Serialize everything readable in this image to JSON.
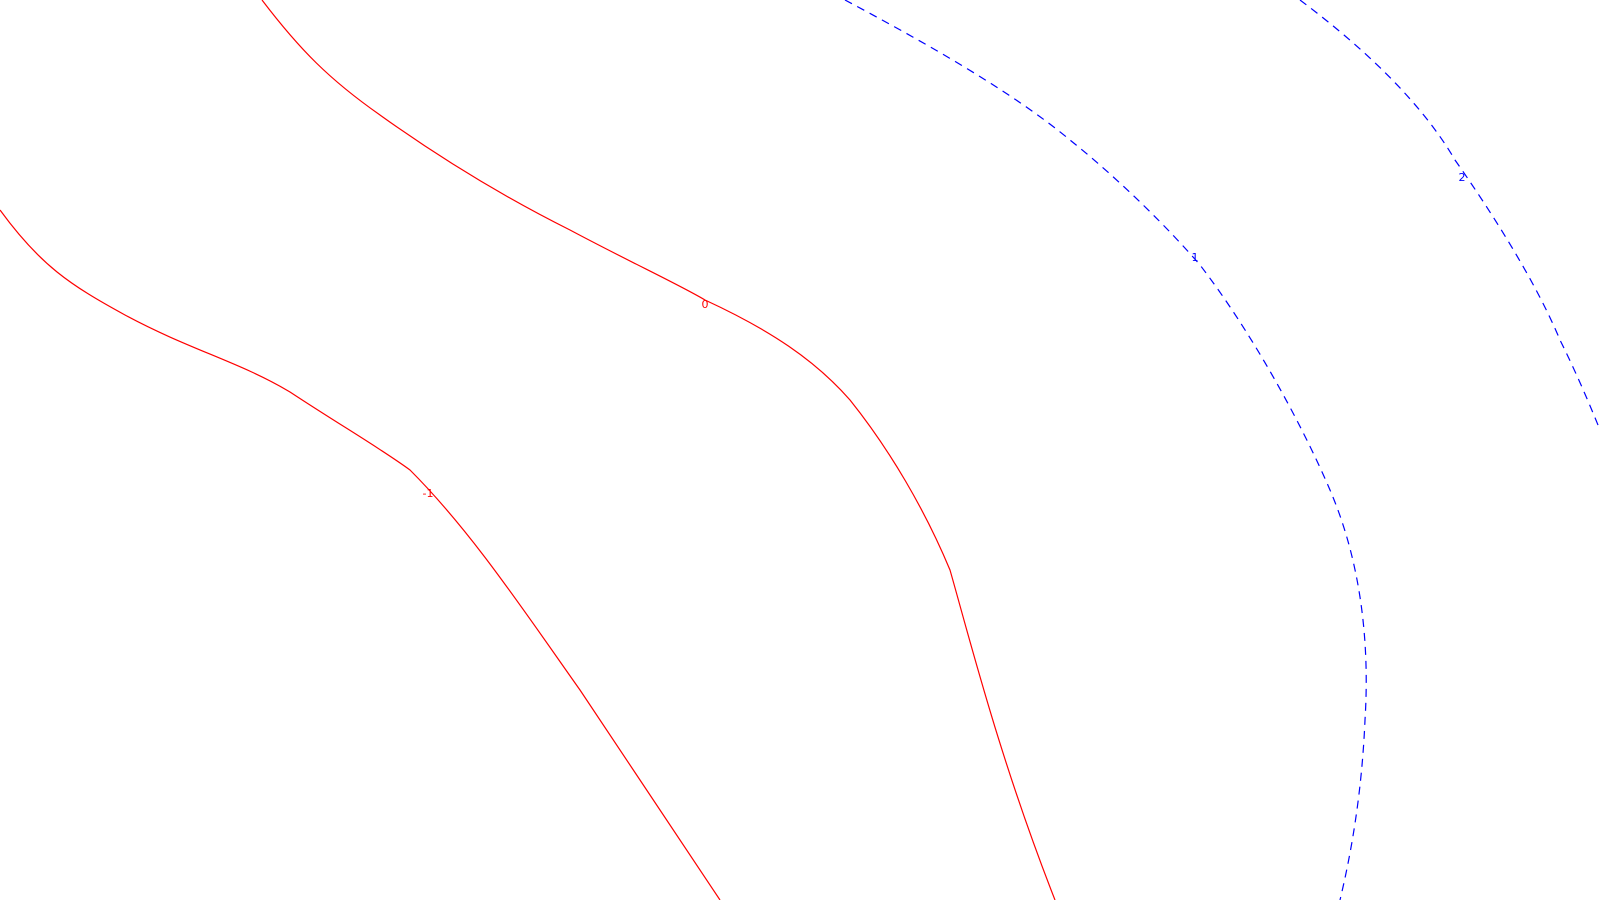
{
  "chart_data": {
    "type": "contour",
    "title": "",
    "xlabel": "",
    "ylabel": "",
    "grid": false,
    "levels": [
      {
        "level": "-1",
        "label": "-1",
        "color": "#ff0000",
        "style": "solid"
      },
      {
        "level": "0",
        "label": "0",
        "color": "#ff0000",
        "style": "solid"
      },
      {
        "level": "1",
        "label": "1",
        "color": "#0000ff",
        "style": "dashed"
      },
      {
        "level": "2",
        "label": "2",
        "color": "#0000ff",
        "style": "dashed"
      }
    ]
  }
}
